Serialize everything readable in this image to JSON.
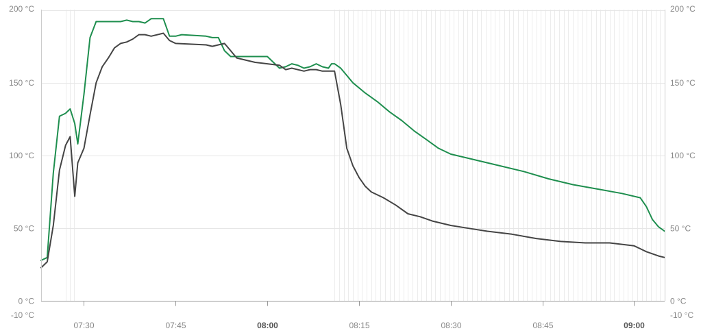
{
  "chart_data": {
    "type": "line",
    "x_unit": "time",
    "xlim": [
      "07:23",
      "09:05"
    ],
    "ylim": [
      -10,
      200
    ],
    "y_ticks": [
      {
        "value": 200,
        "label": "200 °C"
      },
      {
        "value": 150,
        "label": "150 °C"
      },
      {
        "value": 100,
        "label": "100 °C"
      },
      {
        "value": 50,
        "label": "50 °C"
      },
      {
        "value": 0,
        "label": "0 °C"
      },
      {
        "value": -10,
        "label": "-10 °C"
      }
    ],
    "x_ticks": [
      {
        "time": "07:30",
        "label": "07:30",
        "bold": false
      },
      {
        "time": "07:45",
        "label": "07:45",
        "bold": false
      },
      {
        "time": "08:00",
        "label": "08:00",
        "bold": true
      },
      {
        "time": "08:15",
        "label": "08:15",
        "bold": false
      },
      {
        "time": "08:30",
        "label": "08:30",
        "bold": false
      },
      {
        "time": "08:45",
        "label": "08:45",
        "bold": false
      },
      {
        "time": "09:00",
        "label": "09:00",
        "bold": true
      }
    ],
    "grid": true,
    "series": [
      {
        "color": "#1e8e4e",
        "points": [
          [
            "07:23",
            28
          ],
          [
            "07:24",
            30
          ],
          [
            "07:25",
            88
          ],
          [
            "07:26",
            127
          ],
          [
            "07:27",
            129
          ],
          [
            "07:27:45",
            132
          ],
          [
            "07:28:30",
            122
          ],
          [
            "07:29",
            108
          ],
          [
            "07:30",
            142
          ],
          [
            "07:31",
            181
          ],
          [
            "07:32",
            192
          ],
          [
            "07:36",
            192
          ],
          [
            "07:37",
            193
          ],
          [
            "07:38",
            192
          ],
          [
            "07:39",
            192
          ],
          [
            "07:40",
            191
          ],
          [
            "07:41",
            194
          ],
          [
            "07:43",
            194
          ],
          [
            "07:44",
            182
          ],
          [
            "07:45",
            182
          ],
          [
            "07:46",
            183
          ],
          [
            "07:50",
            182
          ],
          [
            "07:51",
            181
          ],
          [
            "07:52",
            181
          ],
          [
            "07:53",
            172
          ],
          [
            "07:54",
            168
          ],
          [
            "07:56",
            168
          ],
          [
            "08:00",
            168
          ],
          [
            "08:02",
            160
          ],
          [
            "08:03",
            161
          ],
          [
            "08:04",
            163
          ],
          [
            "08:05",
            162
          ],
          [
            "08:06",
            160
          ],
          [
            "08:07",
            161
          ],
          [
            "08:08",
            163
          ],
          [
            "08:09",
            161
          ],
          [
            "08:10",
            160
          ],
          [
            "08:10:30",
            163
          ],
          [
            "08:11",
            163
          ],
          [
            "08:12",
            160
          ],
          [
            "08:13",
            155
          ],
          [
            "08:14",
            150
          ],
          [
            "08:16",
            143
          ],
          [
            "08:18",
            137
          ],
          [
            "08:20",
            130
          ],
          [
            "08:22",
            124
          ],
          [
            "08:24",
            117
          ],
          [
            "08:26",
            111
          ],
          [
            "08:28",
            105
          ],
          [
            "08:30",
            101
          ],
          [
            "08:34",
            97
          ],
          [
            "08:38",
            93
          ],
          [
            "08:42",
            89
          ],
          [
            "08:46",
            84
          ],
          [
            "08:50",
            80
          ],
          [
            "08:54",
            77
          ],
          [
            "08:58",
            74
          ],
          [
            "09:01",
            71
          ],
          [
            "09:02",
            65
          ],
          [
            "09:03",
            56
          ],
          [
            "09:04",
            51
          ],
          [
            "09:05",
            48
          ]
        ]
      },
      {
        "color": "#444444",
        "points": [
          [
            "07:23",
            23
          ],
          [
            "07:24",
            27
          ],
          [
            "07:25",
            52
          ],
          [
            "07:26",
            90
          ],
          [
            "07:27",
            107
          ],
          [
            "07:27:45",
            113
          ],
          [
            "07:28:30",
            72
          ],
          [
            "07:29",
            95
          ],
          [
            "07:30",
            105
          ],
          [
            "07:31",
            128
          ],
          [
            "07:32",
            150
          ],
          [
            "07:33",
            161
          ],
          [
            "07:34",
            167
          ],
          [
            "07:35",
            174
          ],
          [
            "07:36",
            177
          ],
          [
            "07:37",
            178
          ],
          [
            "07:38",
            180
          ],
          [
            "07:39",
            183
          ],
          [
            "07:40",
            183
          ],
          [
            "07:41",
            182
          ],
          [
            "07:43",
            184
          ],
          [
            "07:44",
            179
          ],
          [
            "07:45",
            177
          ],
          [
            "07:50",
            176
          ],
          [
            "07:51",
            175
          ],
          [
            "07:53",
            177
          ],
          [
            "07:54",
            172
          ],
          [
            "07:55",
            167
          ],
          [
            "07:58",
            164
          ],
          [
            "08:00",
            163
          ],
          [
            "08:02",
            162
          ],
          [
            "08:03",
            159
          ],
          [
            "08:04",
            160
          ],
          [
            "08:06",
            158
          ],
          [
            "08:07",
            159
          ],
          [
            "08:08",
            159
          ],
          [
            "08:09",
            158
          ],
          [
            "08:11",
            158
          ],
          [
            "08:12",
            135
          ],
          [
            "08:13",
            105
          ],
          [
            "08:14",
            93
          ],
          [
            "08:15",
            85
          ],
          [
            "08:16",
            79
          ],
          [
            "08:17",
            75
          ],
          [
            "08:19",
            71
          ],
          [
            "08:21",
            66
          ],
          [
            "08:23",
            60
          ],
          [
            "08:25",
            58
          ],
          [
            "08:27",
            55
          ],
          [
            "08:30",
            52
          ],
          [
            "08:33",
            50
          ],
          [
            "08:36",
            48
          ],
          [
            "08:40",
            46
          ],
          [
            "08:44",
            43
          ],
          [
            "08:48",
            41
          ],
          [
            "08:52",
            40
          ],
          [
            "08:56",
            40
          ],
          [
            "09:00",
            38
          ],
          [
            "09:01",
            36
          ],
          [
            "09:02",
            34
          ],
          [
            "09:04",
            31
          ],
          [
            "09:05",
            30
          ]
        ]
      }
    ]
  }
}
